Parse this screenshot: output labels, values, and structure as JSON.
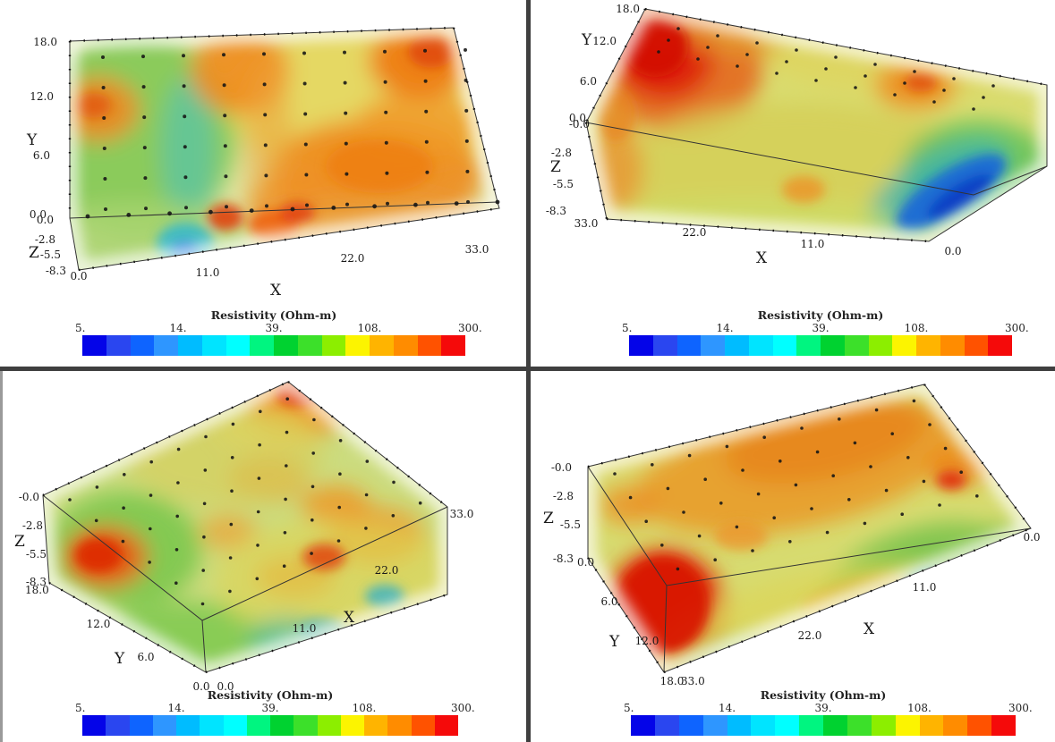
{
  "chart_data": {
    "type": "3d-volume",
    "note": "Four camera views (2x2 grid) of the same 3D electrical-resistivity volume rendering with an electrode grid of black dots on the top surface",
    "title": "Resistivity (Ohm-m)",
    "x": {
      "label": "X",
      "range": [
        0,
        33
      ],
      "ticks": [
        0.0,
        11.0,
        22.0,
        33.0
      ]
    },
    "y": {
      "label": "Y",
      "range": [
        0,
        18
      ],
      "ticks": [
        0.0,
        6.0,
        12.0,
        18.0
      ]
    },
    "z": {
      "label": "Z",
      "range": [
        -8.3,
        0.0
      ],
      "ticks": [
        0.0,
        -2.8,
        -5.5,
        -8.3
      ]
    },
    "color_scale": {
      "label": "Resistivity (Ohm-m)",
      "scale": "logarithmic",
      "min": 5,
      "max": 300,
      "tick_values": [
        5,
        14,
        39,
        108,
        300
      ],
      "bands": 16,
      "palette": "rainbow blue-cyan-green-yellow-orange-red"
    },
    "views": [
      {
        "panel": "top-left",
        "orientation": "plan view from above, X horizontal (0 left - 33 right), Y vertical (18 top - 0 bottom), thin Z face below"
      },
      {
        "panel": "top-right",
        "orientation": "oblique view from front-below, X reversed (33 left - 0 right), Y edge rising to top apex, red anomaly at top-left corner, blue low-resistivity zone at lower right"
      },
      {
        "panel": "bottom-left",
        "orientation": "perspective from upper-left corner, Z axis on left, Y along lower-left edge, X along right edge, orange-red anomaly on left face"
      },
      {
        "panel": "bottom-right",
        "orientation": "perspective from front-left, Z axis on left, strong red high-resistivity block at lower-left, cyan-blue spot near right"
      }
    ],
    "features": [
      "background resistivity ~30-80 Ohm-m (green-yellow)",
      "multiple near-surface high-resistivity anomalies (orange-red, >108 Ohm-m)",
      "strong ~300 Ohm-m red anomaly near X=33, Y=12-18",
      "low-resistivity blue zone (~5-14 Ohm-m) at depth near X=5-11",
      "black dots mark electrode positions on the top surface"
    ]
  },
  "colorbar": {
    "title": "Resistivity (Ohm-m)",
    "ticks": [
      "5.",
      "14.",
      "39.",
      "108.",
      "300."
    ],
    "band_colors": [
      "#0404E8",
      "#2A46F0",
      "#0E64FF",
      "#2E96FF",
      "#00BCFF",
      "#00E4FF",
      "#00FFFF",
      "#00F580",
      "#00D230",
      "#3CE02A",
      "#8CEE00",
      "#FCF400",
      "#FFB400",
      "#FF8C00",
      "#FF5200",
      "#F50A0A"
    ]
  },
  "panels": [
    {
      "id": "top-left",
      "x_label": "X",
      "y_label": "Y",
      "z_label": "Z",
      "x_ticks": [
        "0.0",
        "11.0",
        "22.0",
        "33.0"
      ],
      "y_ticks": [
        "18.0",
        "12.0",
        "6.0",
        "0.0"
      ],
      "z_ticks": [
        "0.0",
        "-2.8",
        "-5.5",
        "-8.3"
      ]
    },
    {
      "id": "top-right",
      "x_label": "X",
      "y_label": "Y",
      "z_label": "Z",
      "x_ticks": [
        "33.0",
        "22.0",
        "11.0",
        "0.0"
      ],
      "y_ticks": [
        "18.0",
        "12.0",
        "6.0",
        "0.0"
      ],
      "z_ticks": [
        "-0.0",
        "-2.8",
        "-5.5",
        "-8.3"
      ]
    },
    {
      "id": "bottom-left",
      "x_label": "X",
      "y_label": "Y",
      "z_label": "Z",
      "x_ticks": [
        "33.0",
        "22.0",
        "11.0",
        "0.0"
      ],
      "y_ticks": [
        "18.0",
        "12.0",
        "6.0",
        "0.0"
      ],
      "z_ticks": [
        "-0.0",
        "-2.8",
        "-5.5",
        "-8.3"
      ]
    },
    {
      "id": "bottom-right",
      "x_label": "X",
      "y_label": "Y",
      "z_label": "Z",
      "x_ticks": [
        "33.0",
        "22.0",
        "11.0",
        "0.0"
      ],
      "y_ticks": [
        "0.0",
        "6.0",
        "12.0",
        "18.0"
      ],
      "z_ticks": [
        "-0.0",
        "-2.8",
        "-5.5",
        "-8.3"
      ]
    }
  ]
}
